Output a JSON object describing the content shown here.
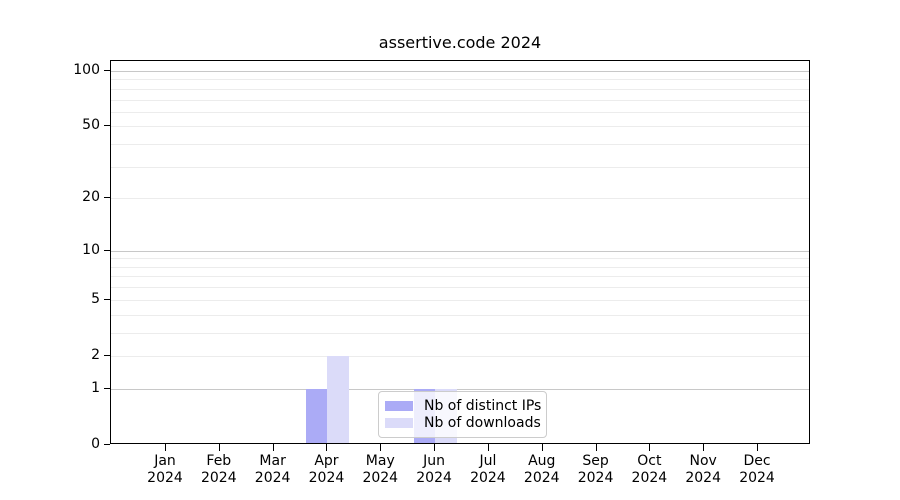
{
  "title": "assertive.code 2024",
  "chart_data": {
    "type": "bar",
    "title": "assertive.code 2024",
    "xlabel": "",
    "ylabel": "",
    "categories": [
      "Jan 2024",
      "Feb 2024",
      "Mar 2024",
      "Apr 2024",
      "May 2024",
      "Jun 2024",
      "Jul 2024",
      "Aug 2024",
      "Sep 2024",
      "Oct 2024",
      "Nov 2024",
      "Dec 2024"
    ],
    "x_tick_labels": [
      {
        "month": "Jan",
        "year": "2024"
      },
      {
        "month": "Feb",
        "year": "2024"
      },
      {
        "month": "Mar",
        "year": "2024"
      },
      {
        "month": "Apr",
        "year": "2024"
      },
      {
        "month": "May",
        "year": "2024"
      },
      {
        "month": "Jun",
        "year": "2024"
      },
      {
        "month": "Jul",
        "year": "2024"
      },
      {
        "month": "Aug",
        "year": "2024"
      },
      {
        "month": "Sep",
        "year": "2024"
      },
      {
        "month": "Oct",
        "year": "2024"
      },
      {
        "month": "Nov",
        "year": "2024"
      },
      {
        "month": "Dec",
        "year": "2024"
      }
    ],
    "series": [
      {
        "name": "Nb of distinct IPs",
        "color": "#ababf6",
        "values": [
          0,
          0,
          0,
          1,
          0,
          1,
          0,
          0,
          0,
          0,
          0,
          0
        ]
      },
      {
        "name": "Nb of downloads",
        "color": "#dbdbf9",
        "values": [
          0,
          0,
          0,
          2,
          0,
          1,
          0,
          0,
          0,
          0,
          0,
          0
        ]
      }
    ],
    "yscale": "log1p",
    "ylim": [
      0,
      112
    ],
    "y_tick_values": [
      0,
      1,
      2,
      5,
      10,
      20,
      50,
      100
    ],
    "y_tick_labels": [
      "0",
      "1",
      "2",
      "5",
      "10",
      "20",
      "50",
      "100"
    ],
    "grid": {
      "major_values": [
        1,
        10,
        100
      ],
      "minor_values": [
        2,
        3,
        4,
        5,
        6,
        7,
        8,
        9,
        20,
        30,
        40,
        50,
        60,
        70,
        80,
        90
      ],
      "major_color": "#c8c8c8",
      "minor_color": "#ececec"
    },
    "legend": {
      "position": "inside-bottom-center",
      "entries": [
        "Nb of distinct IPs",
        "Nb of downloads"
      ]
    },
    "colors": {
      "spine": "#000000",
      "text": "#000000",
      "background": "#ffffff",
      "legend_border": "#cccccc"
    }
  }
}
